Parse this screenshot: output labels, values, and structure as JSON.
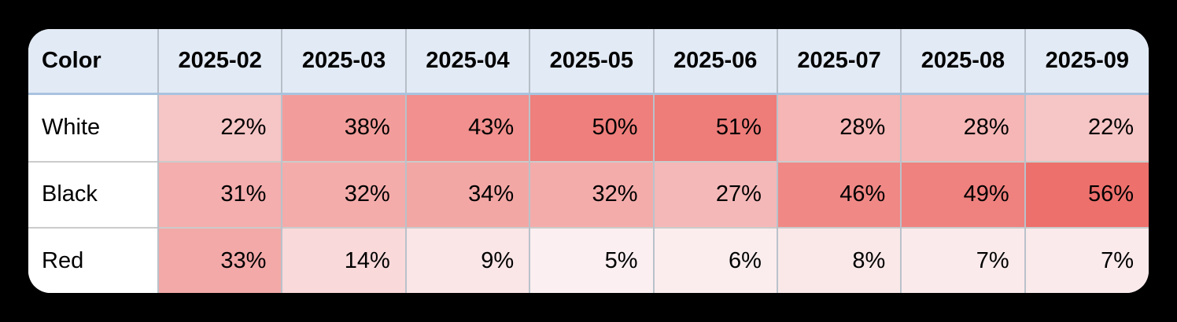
{
  "page": {
    "background_color": "#000000",
    "card_background": "#ffffff"
  },
  "theme": {
    "header_bg": "#e2eaf5",
    "header_underline": "#a9c3de",
    "grid_vertical": "#b9c2ca",
    "grid_horizontal": "#cbcbcb",
    "text_color": "#000000",
    "row_label_bg": "#ffffff"
  },
  "chart_data": {
    "type": "heatmap",
    "corner_label": "Color",
    "categories": [
      "2025-02",
      "2025-03",
      "2025-04",
      "2025-05",
      "2025-06",
      "2025-07",
      "2025-08",
      "2025-09"
    ],
    "series": [
      {
        "name": "White",
        "values": [
          22,
          38,
          43,
          50,
          51,
          28,
          28,
          22
        ]
      },
      {
        "name": "Black",
        "values": [
          31,
          32,
          34,
          32,
          27,
          46,
          49,
          56
        ]
      },
      {
        "name": "Red",
        "values": [
          33,
          14,
          9,
          5,
          6,
          8,
          7,
          7
        ]
      }
    ],
    "value_suffix": "%",
    "heatmap_scale": {
      "scale_min": 5,
      "scale_max": 56,
      "min_color": "#fbeff1",
      "max_color": "#ed706c"
    },
    "title": "",
    "xlabel": "",
    "ylabel": "",
    "legend": "none",
    "grid": "on"
  }
}
